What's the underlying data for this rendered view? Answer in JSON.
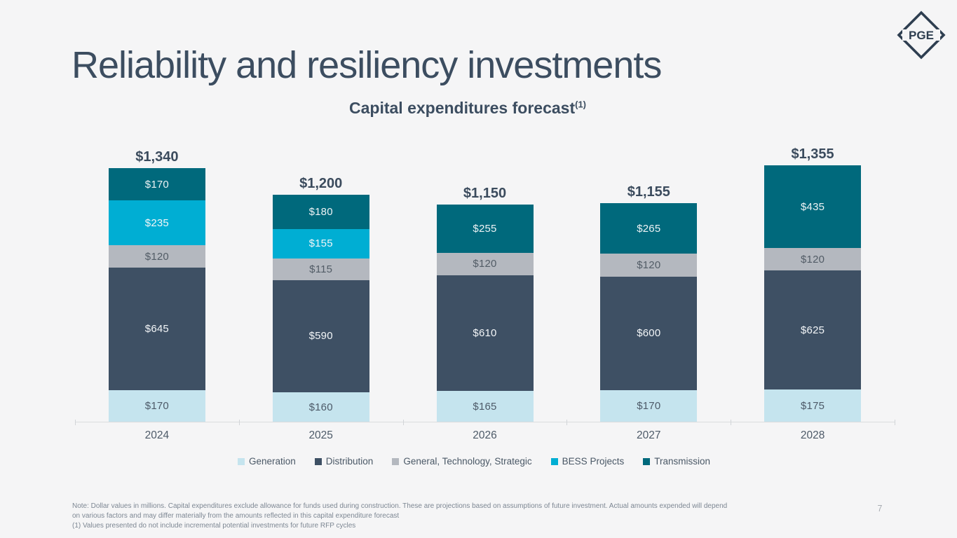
{
  "slide": {
    "title": "Reliability and resiliency investments",
    "page_number": "7",
    "logo_text": "PGE",
    "notes": {
      "line1": "Note: Dollar values in millions. Capital expenditures exclude allowance for funds used during construction. These are projections based on assumptions of future investment. Actual amounts expended will depend",
      "line2": "on various factors and may differ materially from the amounts reflected in this capital expenditure forecast",
      "line3": "(1) Values presented do not include incremental potential investments for future RFP cycles"
    }
  },
  "chart_data": {
    "type": "bar",
    "variant": "stacked",
    "title": "Capital expenditures forecast",
    "title_footnote_marker": "(1)",
    "unit": "USD millions",
    "value_prefix": "$",
    "categories": [
      "2024",
      "2025",
      "2026",
      "2027",
      "2028"
    ],
    "totals": [
      1340,
      1200,
      1150,
      1155,
      1355
    ],
    "total_labels": [
      "$1,340",
      "$1,200",
      "$1,150",
      "$1,155",
      "$1,355"
    ],
    "ylim": [
      0,
      1400
    ],
    "grid": false,
    "legend_position": "bottom",
    "series": [
      {
        "name": "Generation",
        "color": "#c5e4ee",
        "label_color": "#4d5a68",
        "values": [
          170,
          160,
          165,
          170,
          175
        ]
      },
      {
        "name": "Distribution",
        "color": "#3e5064",
        "label_color": "#f3f6f8",
        "values": [
          645,
          590,
          610,
          600,
          625
        ]
      },
      {
        "name": "General, Technology, Strategic",
        "color": "#b4b8bf",
        "label_color": "#525c66",
        "values": [
          120,
          115,
          120,
          120,
          120
        ]
      },
      {
        "name": "BESS Projects",
        "color": "#00aed3",
        "label_color": "#f3f6f8",
        "values": [
          235,
          155,
          0,
          0,
          0
        ]
      },
      {
        "name": "Transmission",
        "color": "#00697c",
        "label_color": "#eef3f5",
        "values": [
          170,
          180,
          255,
          265,
          435
        ]
      }
    ]
  },
  "colors": {
    "background": "#f5f5f6",
    "heading": "#3c4d60",
    "axis": "#dadcde",
    "logo": "#2e3e50"
  }
}
